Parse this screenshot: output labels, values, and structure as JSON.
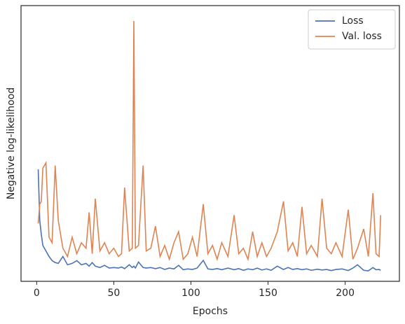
{
  "chart_data": {
    "type": "line",
    "xlabel": "Epochs",
    "ylabel": "Negative log-likelihood",
    "x": [
      1,
      2,
      3,
      4,
      6,
      8,
      10,
      12,
      14,
      17,
      20,
      23,
      26,
      29,
      32,
      34,
      36,
      38,
      41,
      44,
      47,
      50,
      53,
      55,
      57,
      60,
      62,
      63,
      64,
      66,
      69,
      71,
      74,
      77,
      80,
      83,
      86,
      89,
      92,
      95,
      98,
      101,
      104,
      108,
      111,
      114,
      117,
      120,
      124,
      128,
      131,
      134,
      137,
      140,
      143,
      146,
      149,
      152,
      156,
      160,
      163,
      166,
      169,
      172,
      175,
      178,
      182,
      185,
      188,
      191,
      194,
      198,
      202,
      205,
      208,
      212,
      215,
      218,
      220,
      222,
      223
    ],
    "series": [
      {
        "name": "Loss",
        "color": "#4c72b0",
        "values": [
          40.6,
          22,
          17,
          13,
          11,
          9,
          7.5,
          6.8,
          6.5,
          9,
          6,
          6.5,
          7.5,
          6,
          6.5,
          5.5,
          6.8,
          5.5,
          5,
          5.8,
          4.8,
          5,
          4.8,
          5.2,
          4.6,
          6,
          5,
          5.5,
          4.8,
          7,
          5,
          4.8,
          5,
          4.6,
          5,
          4.3,
          4.8,
          4.5,
          5.8,
          4.2,
          4.5,
          4.3,
          4.8,
          7.6,
          4.5,
          4.3,
          4.6,
          4.2,
          4.8,
          4.2,
          4.6,
          4,
          4.5,
          4.2,
          4.8,
          4.1,
          4.5,
          4,
          5.5,
          4.3,
          5,
          4.3,
          4.6,
          4.2,
          4.5,
          4,
          4.4,
          4.1,
          4.3,
          3.9,
          4.3,
          4.5,
          3.9,
          4.8,
          6,
          4,
          3.8,
          5,
          4.2,
          4.3,
          4
        ]
      },
      {
        "name": "Val. loss",
        "color": "#dd8452",
        "values": [
          21,
          28,
          29,
          41,
          43,
          16,
          14,
          42,
          22,
          12,
          9,
          16,
          10,
          14,
          12,
          25,
          10,
          30,
          11,
          14,
          10,
          12,
          9,
          10,
          34,
          11,
          12,
          94.4,
          12,
          13,
          42,
          11,
          12,
          20,
          9,
          13,
          8,
          14,
          18,
          8,
          10,
          16,
          9,
          28,
          10,
          13,
          8,
          14,
          9,
          24,
          10,
          12,
          8,
          18,
          9,
          14,
          9,
          12,
          18,
          29,
          11,
          14,
          9,
          27,
          10,
          13,
          9,
          30,
          12,
          10,
          14,
          9,
          26,
          8,
          12,
          19,
          9,
          32,
          10,
          9,
          24
        ]
      }
    ],
    "xlim": [
      -10.15,
      235.15
    ],
    "xticks": [
      0,
      50,
      100,
      150,
      200
    ],
    "ylim": [
      0,
      100
    ],
    "legend": "upper right"
  }
}
